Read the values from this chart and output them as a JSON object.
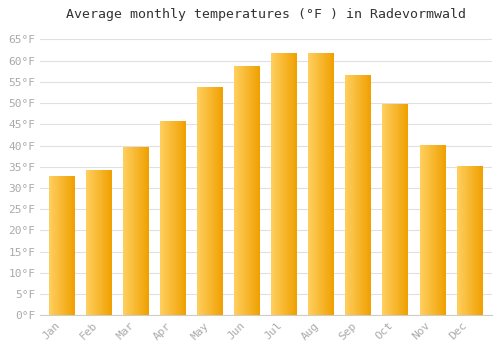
{
  "months": [
    "Jan",
    "Feb",
    "Mar",
    "Apr",
    "May",
    "Jun",
    "Jul",
    "Aug",
    "Sep",
    "Oct",
    "Nov",
    "Dec"
  ],
  "values": [
    32.5,
    34.0,
    39.5,
    45.5,
    53.5,
    58.5,
    61.5,
    61.5,
    56.5,
    49.5,
    40.0,
    35.0
  ],
  "bar_color_left": "#FFD060",
  "bar_color_right": "#F0A000",
  "title": "Average monthly temperatures (°F ) in Radevormwald",
  "title_fontsize": 9.5,
  "ylabel_ticks": [
    "0°F",
    "5°F",
    "10°F",
    "15°F",
    "20°F",
    "25°F",
    "30°F",
    "35°F",
    "40°F",
    "45°F",
    "50°F",
    "55°F",
    "60°F",
    "65°F"
  ],
  "ytick_values": [
    0,
    5,
    10,
    15,
    20,
    25,
    30,
    35,
    40,
    45,
    50,
    55,
    60,
    65
  ],
  "ylim": [
    0,
    68
  ],
  "background_color": "#ffffff",
  "grid_color": "#e0e0e0",
  "tick_label_color": "#aaaaaa",
  "tick_label_fontsize": 8,
  "font_family": "monospace",
  "bar_width": 0.7
}
